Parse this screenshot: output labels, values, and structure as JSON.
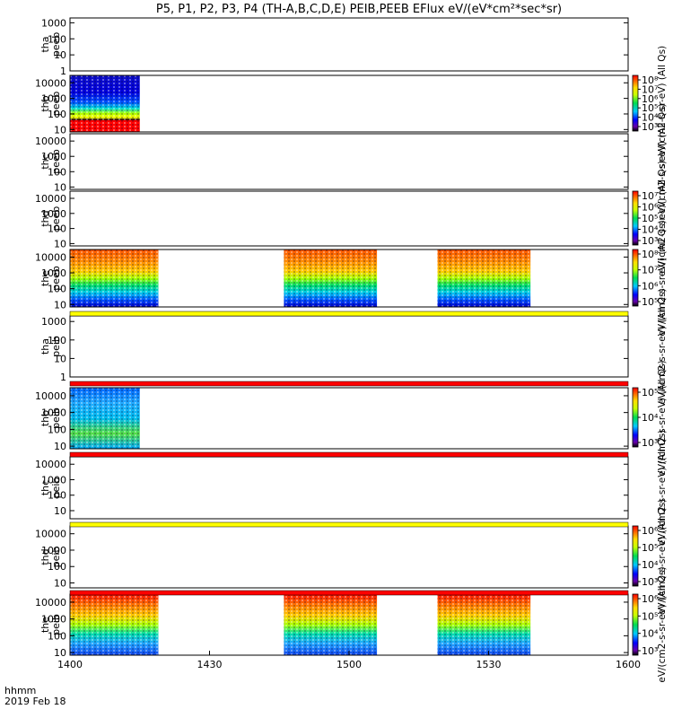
{
  "chart_data": {
    "type": "heatmap",
    "title": "P5, P1, P2, P3, P4 (TH-A,B,C,D,E) PEIB,PEEB EFlux eV/(eV*cm²*sec*sr)",
    "x_axis": {
      "ticks": [
        "1400",
        "1430",
        "1500",
        "1530",
        "1600"
      ],
      "label_lines": [
        "hhmm",
        "2019 Feb 18"
      ],
      "range": [
        "14:00",
        "16:00"
      ]
    },
    "y_scale": "log",
    "colormap": "rainbow",
    "panels": [
      {
        "id": "tha_peeb",
        "label": [
          "tha",
          "peeb"
        ],
        "ylim": [
          1,
          2000
        ],
        "yticks": [
          "1000",
          "100",
          "10",
          "1"
        ],
        "data_intervals": []
      },
      {
        "id": "thb_peeb",
        "label": [
          "thb",
          "peeb"
        ],
        "ylim": [
          7,
          30000
        ],
        "yticks": [
          "10000",
          "1000",
          "100",
          "10"
        ],
        "data_intervals": [
          [
            "14:00",
            "14:15"
          ]
        ],
        "colorbar": {
          "ticks": [
            "10⁸",
            "10⁷",
            "10⁶",
            "10⁵",
            "10⁴",
            "10³"
          ],
          "label": "eV/(cm2-s-sr-eV)  (All Qs)"
        }
      },
      {
        "id": "thc_peeb",
        "label": [
          "thc",
          "peeb"
        ],
        "ylim": [
          7,
          30000
        ],
        "yticks": [
          "10000",
          "1000",
          "100",
          "10"
        ],
        "data_intervals": [],
        "colorbar": {
          "label": "eV/(cm2-s-sr-eV)  (All Qs)"
        }
      },
      {
        "id": "thd_peeb",
        "label": [
          "thd",
          "peeb"
        ],
        "ylim": [
          7,
          30000
        ],
        "yticks": [
          "10000",
          "1000",
          "100",
          "10"
        ],
        "data_intervals": [],
        "colorbar": {
          "ticks": [
            "10⁷",
            "10⁶",
            "10⁵",
            "10⁴",
            "10³"
          ],
          "label": "eV/(cm2-s-sr-eV)  (All Qs)"
        }
      },
      {
        "id": "the_peeb",
        "label": [
          "the",
          "peeb"
        ],
        "ylim": [
          7,
          30000
        ],
        "yticks": [
          "10000",
          "1000",
          "100",
          "10"
        ],
        "data_intervals": [
          [
            "14:00",
            "14:19"
          ],
          [
            "14:46",
            "15:06"
          ],
          [
            "15:19",
            "15:39"
          ]
        ],
        "colorbar": {
          "ticks": [
            "10⁸",
            "10⁷",
            "10⁶",
            "10⁵"
          ],
          "label": "eV/(cm2-s-sr-eV)  (All Qs)"
        }
      },
      {
        "id": "tha_peib",
        "label": [
          "tha",
          "peib"
        ],
        "ylim": [
          1,
          2000
        ],
        "yticks": [
          "1000",
          "100",
          "10",
          "1"
        ],
        "data_intervals": [],
        "colorbar": {
          "label": "eV/(cm2-s-sr-eV)  (All Qs)"
        }
      },
      {
        "id": "thb_peib",
        "label": [
          "thb",
          "peib"
        ],
        "ylim": [
          7,
          30000
        ],
        "yticks": [
          "10000",
          "1000",
          "100",
          "10"
        ],
        "data_intervals": [
          [
            "14:00",
            "14:15"
          ]
        ],
        "colorbar": {
          "ticks": [
            "10⁵",
            "10⁴",
            "10³"
          ],
          "label": "eV/(cm2-s-sr-eV)  (All Qs)"
        }
      },
      {
        "id": "thc_peib",
        "label": [
          "thc",
          "peib"
        ],
        "ylim": [
          3,
          30000
        ],
        "yticks": [
          "10000",
          "1000",
          "100",
          "10"
        ],
        "data_intervals": [],
        "colorbar": {
          "label": "eV/(cm2-s-sr-eV)  (All Qs)"
        }
      },
      {
        "id": "thd_peib",
        "label": [
          "thd",
          "peib"
        ],
        "ylim": [
          5,
          30000
        ],
        "yticks": [
          "10000",
          "1000",
          "100",
          "10"
        ],
        "data_intervals": [],
        "colorbar": {
          "ticks": [
            "10⁶",
            "10⁵",
            "10⁴",
            "10³"
          ],
          "label": "eV/(cm2-s-sr-eV)  (All Qs)"
        }
      },
      {
        "id": "the_peib",
        "label": [
          "the",
          "peib"
        ],
        "ylim": [
          7,
          30000
        ],
        "yticks": [
          "10000",
          "1000",
          "100",
          "10"
        ],
        "data_intervals": [
          [
            "14:00",
            "14:19"
          ],
          [
            "14:46",
            "15:06"
          ],
          [
            "15:19",
            "15:39"
          ]
        ],
        "colorbar": {
          "ticks": [
            "10⁶",
            "10⁵",
            "10⁴",
            "10³"
          ],
          "label": "eV/(cm2-s-sr-eV)  (All Qs)"
        }
      }
    ],
    "status_bars": [
      {
        "after": "the_peeb",
        "color": "#ffff00"
      },
      {
        "after": "tha_peib",
        "color": "#ff0000"
      },
      {
        "after": "thb_peib",
        "color": "#ff0000"
      },
      {
        "after": "thc_peib",
        "color": "#ffff00"
      },
      {
        "after": "thd_peib",
        "color": "#ff0000"
      }
    ]
  }
}
